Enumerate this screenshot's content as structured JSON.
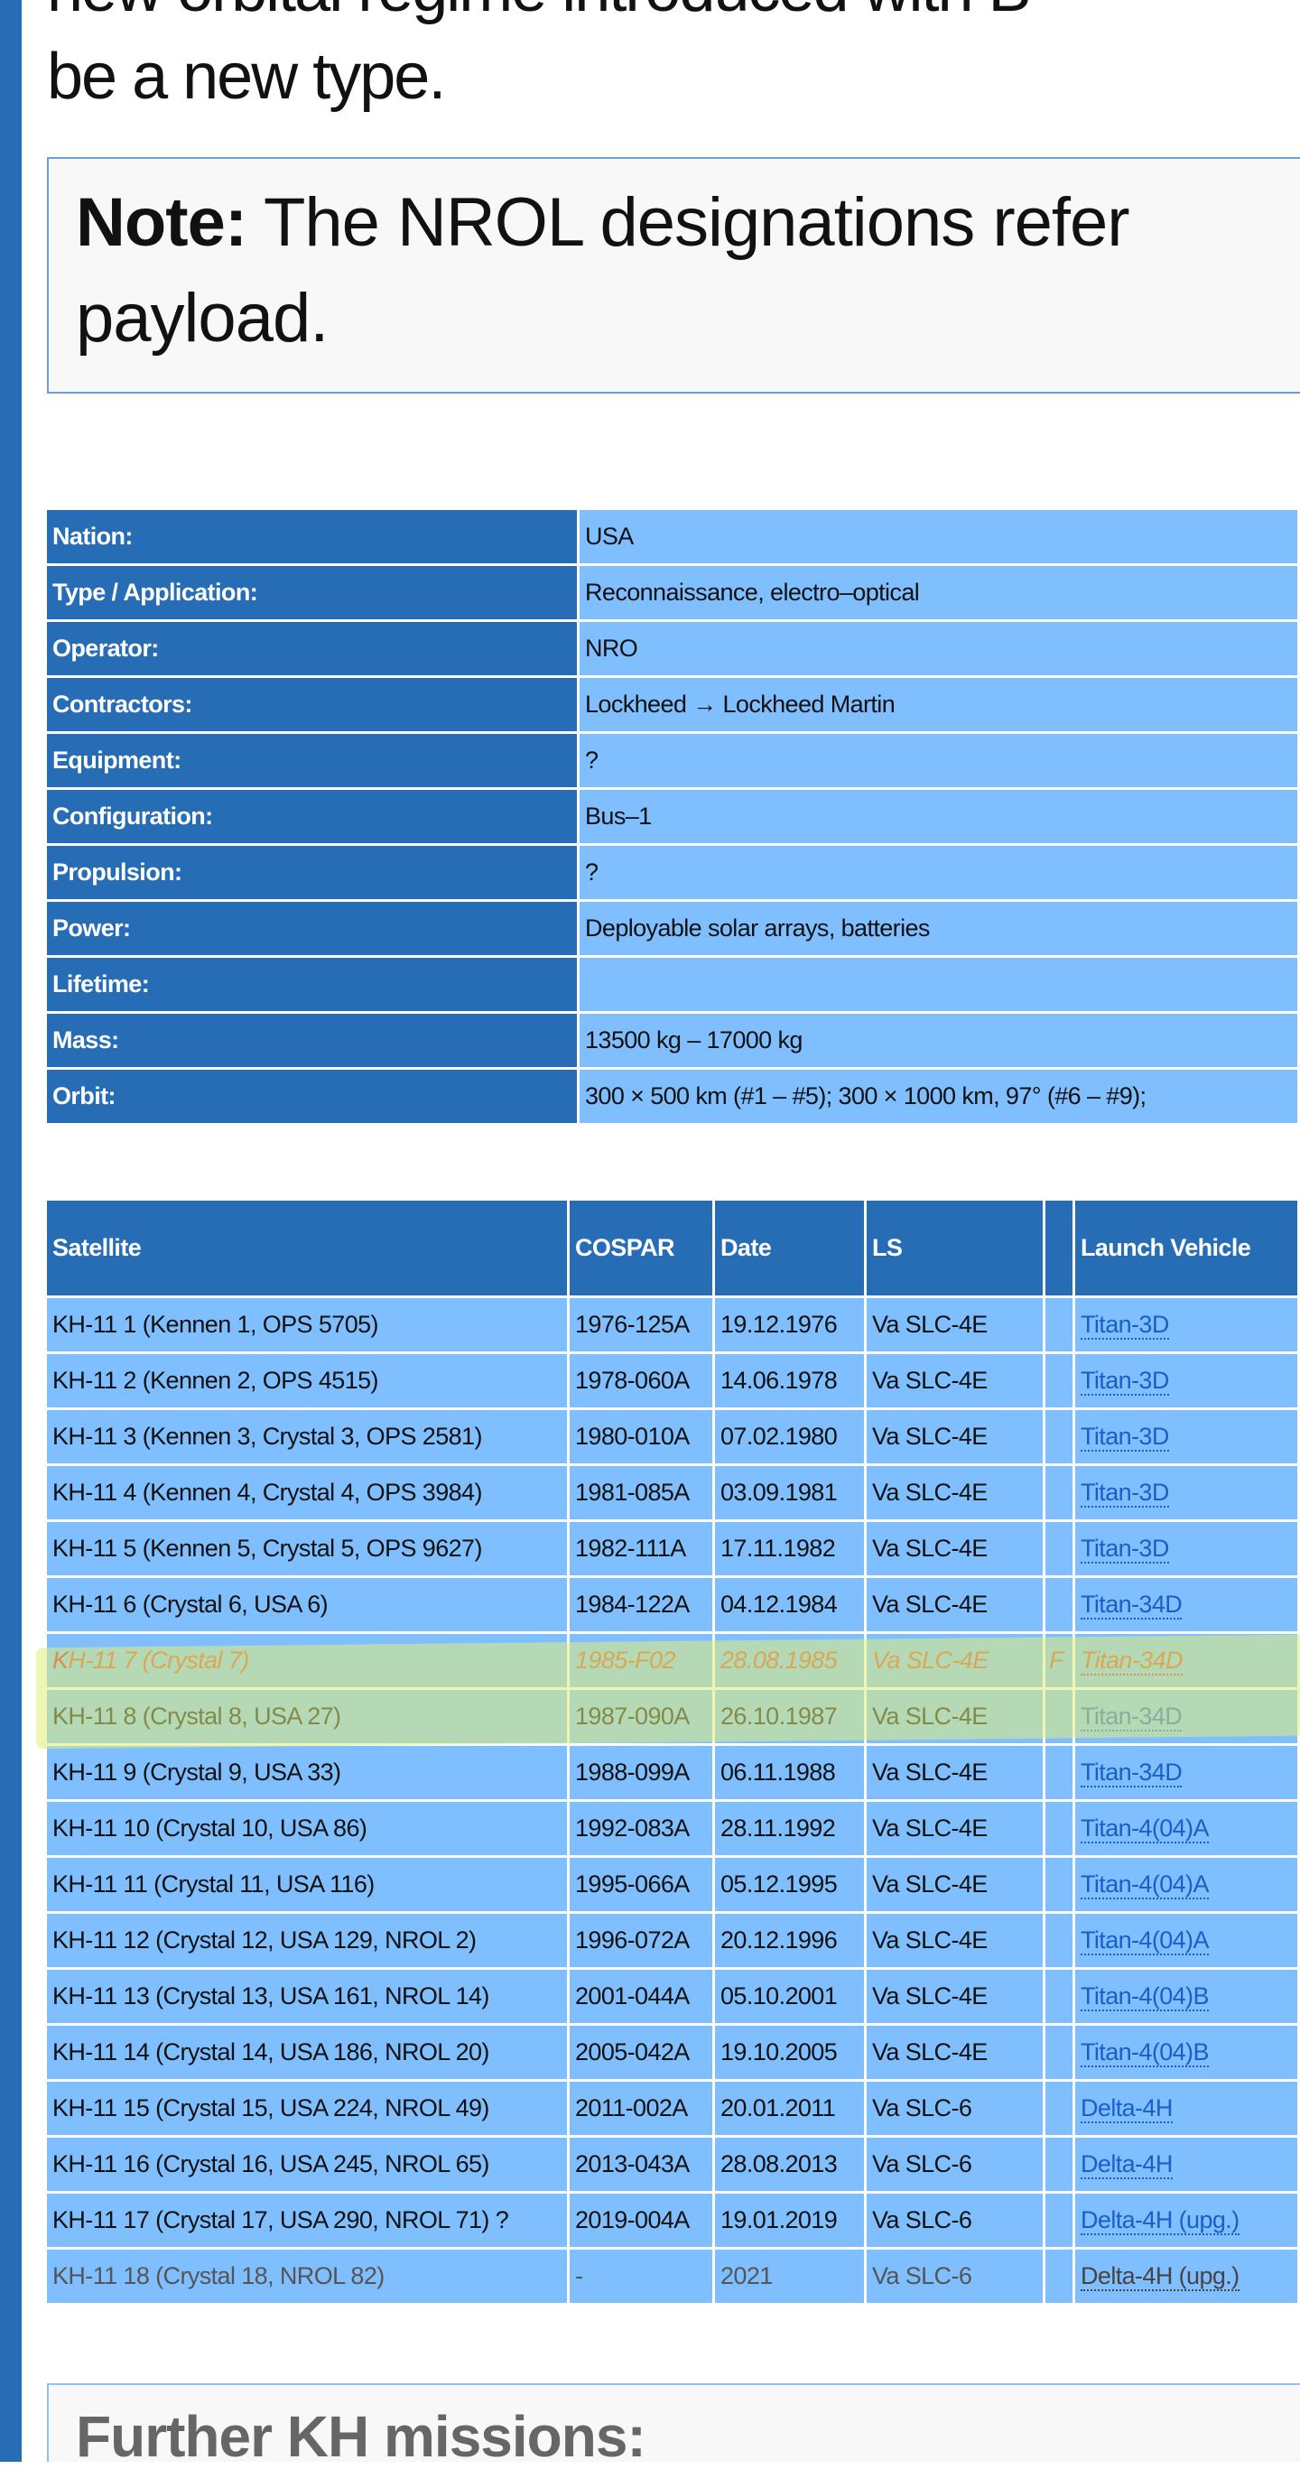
{
  "colors": {
    "sidebar": "#276db5",
    "label_cell": "#276db5",
    "value_cell": "#80bfff",
    "link": "#1a5fc8",
    "failed": "#d0502a",
    "highlight": "#e1ee78"
  },
  "intro": {
    "line1": "new orbital regime introduced with B",
    "line2": "be a new type."
  },
  "note": {
    "label": "Note:",
    "text": " The NROL designations refer",
    "text2": "payload."
  },
  "info": [
    {
      "label": "Nation:",
      "value": "USA"
    },
    {
      "label": "Type / Application:",
      "value": "Reconnaissance, electro–optical"
    },
    {
      "label": "Operator:",
      "value": "NRO"
    },
    {
      "label": "Contractors:",
      "value": "Lockheed → Lockheed Martin"
    },
    {
      "label": "Equipment:",
      "value": "?"
    },
    {
      "label": "Configuration:",
      "value": "Bus–1"
    },
    {
      "label": "Propulsion:",
      "value": "?"
    },
    {
      "label": "Power:",
      "value": "Deployable solar arrays, batteries"
    },
    {
      "label": "Lifetime:",
      "value": ""
    },
    {
      "label": "Mass:",
      "value": "13500 kg – 17000 kg"
    },
    {
      "label": "Orbit:",
      "value": "300 × 500 km (#1 – #5); 300 × 1000 km, 97° (#6 – #9);"
    }
  ],
  "satellites": {
    "headers": [
      "Satellite",
      "COSPAR",
      "Date",
      "LS",
      "",
      "Launch Vehicle"
    ],
    "rows": [
      {
        "satellite": "KH-11 1 (Kennen 1, OPS 5705)",
        "cospar": "1976-125A",
        "date": "19.12.1976",
        "ls": "Va SLC-4E",
        "f": "",
        "lv": "Titan-3D"
      },
      {
        "satellite": "KH-11 2 (Kennen 2, OPS 4515)",
        "cospar": "1978-060A",
        "date": "14.06.1978",
        "ls": "Va SLC-4E",
        "f": "",
        "lv": "Titan-3D"
      },
      {
        "satellite": "KH-11 3 (Kennen 3, Crystal 3, OPS 2581)",
        "cospar": "1980-010A",
        "date": "07.02.1980",
        "ls": "Va SLC-4E",
        "f": "",
        "lv": "Titan-3D"
      },
      {
        "satellite": "KH-11 4 (Kennen 4, Crystal 4, OPS 3984)",
        "cospar": "1981-085A",
        "date": "03.09.1981",
        "ls": "Va SLC-4E",
        "f": "",
        "lv": "Titan-3D"
      },
      {
        "satellite": "KH-11 5 (Kennen 5, Crystal 5, OPS 9627)",
        "cospar": "1982-111A",
        "date": "17.11.1982",
        "ls": "Va SLC-4E",
        "f": "",
        "lv": "Titan-3D"
      },
      {
        "satellite": "KH-11 6 (Crystal 6, USA 6)",
        "cospar": "1984-122A",
        "date": "04.12.1984",
        "ls": "Va SLC-4E",
        "f": "",
        "lv": "Titan-34D"
      },
      {
        "satellite": "KH-11 7 (Crystal 7)",
        "cospar": "1985-F02",
        "date": "28.08.1985",
        "ls": "Va SLC-4E",
        "f": "F",
        "lv": "Titan-34D",
        "status": "failed"
      },
      {
        "satellite": "KH-11 8 (Crystal 8, USA 27)",
        "cospar": "1987-090A",
        "date": "26.10.1987",
        "ls": "Va SLC-4E",
        "f": "",
        "lv": "Titan-34D"
      },
      {
        "satellite": "KH-11 9 (Crystal 9, USA 33)",
        "cospar": "1988-099A",
        "date": "06.11.1988",
        "ls": "Va SLC-4E",
        "f": "",
        "lv": "Titan-34D"
      },
      {
        "satellite": "KH-11 10 (Crystal 10, USA 86)",
        "cospar": "1992-083A",
        "date": "28.11.1992",
        "ls": "Va SLC-4E",
        "f": "",
        "lv": "Titan-4(04)A"
      },
      {
        "satellite": "KH-11 11 (Crystal 11, USA 116)",
        "cospar": "1995-066A",
        "date": "05.12.1995",
        "ls": "Va SLC-4E",
        "f": "",
        "lv": "Titan-4(04)A"
      },
      {
        "satellite": "KH-11 12 (Crystal 12, USA 129, NROL 2)",
        "cospar": "1996-072A",
        "date": "20.12.1996",
        "ls": "Va SLC-4E",
        "f": "",
        "lv": "Titan-4(04)A"
      },
      {
        "satellite": "KH-11 13 (Crystal 13, USA 161, NROL 14)",
        "cospar": "2001-044A",
        "date": "05.10.2001",
        "ls": "Va SLC-4E",
        "f": "",
        "lv": "Titan-4(04)B"
      },
      {
        "satellite": "KH-11 14 (Crystal 14, USA 186, NROL 20)",
        "cospar": "2005-042A",
        "date": "19.10.2005",
        "ls": "Va SLC-4E",
        "f": "",
        "lv": "Titan-4(04)B"
      },
      {
        "satellite": "KH-11 15 (Crystal 15, USA 224, NROL 49)",
        "cospar": "2011-002A",
        "date": "20.01.2011",
        "ls": "Va SLC-6",
        "f": "",
        "lv": "Delta-4H"
      },
      {
        "satellite": "KH-11 16 (Crystal 16, USA 245, NROL 65)",
        "cospar": "2013-043A",
        "date": "28.08.2013",
        "ls": "Va SLC-6",
        "f": "",
        "lv": "Delta-4H"
      },
      {
        "satellite": "KH-11 17 (Crystal 17, USA 290, NROL 71) ?",
        "cospar": "2019-004A",
        "date": "19.01.2019",
        "ls": "Va SLC-6",
        "f": "",
        "lv": "Delta-4H (upg.)"
      },
      {
        "satellite": "KH-11 18 (Crystal 18, NROL 82)",
        "cospar": "-",
        "date": "2021",
        "ls": "Va SLC-6",
        "f": "",
        "lv": "Delta-4H (upg.)",
        "status": "planned"
      }
    ]
  },
  "further": {
    "heading": "Further KH missions:"
  }
}
